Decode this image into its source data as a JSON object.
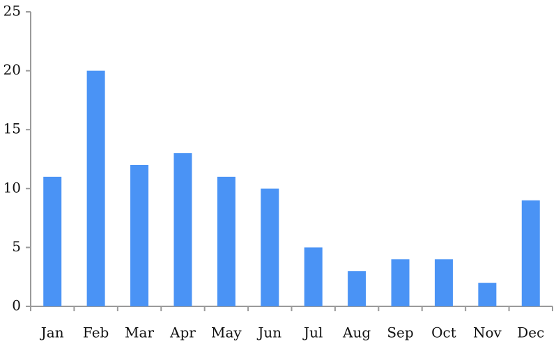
{
  "chart_data": {
    "type": "bar",
    "categories": [
      "Jan",
      "Feb",
      "Mar",
      "Apr",
      "May",
      "Jun",
      "Jul",
      "Aug",
      "Sep",
      "Oct",
      "Nov",
      "Dec"
    ],
    "values": [
      11,
      20,
      12,
      13,
      11,
      10,
      5,
      3,
      4,
      4,
      2,
      9
    ],
    "color": "#4a93f5",
    "ylim": [
      0,
      25
    ],
    "yticks": [
      0,
      5,
      10,
      15,
      20,
      25
    ],
    "grid": false
  }
}
